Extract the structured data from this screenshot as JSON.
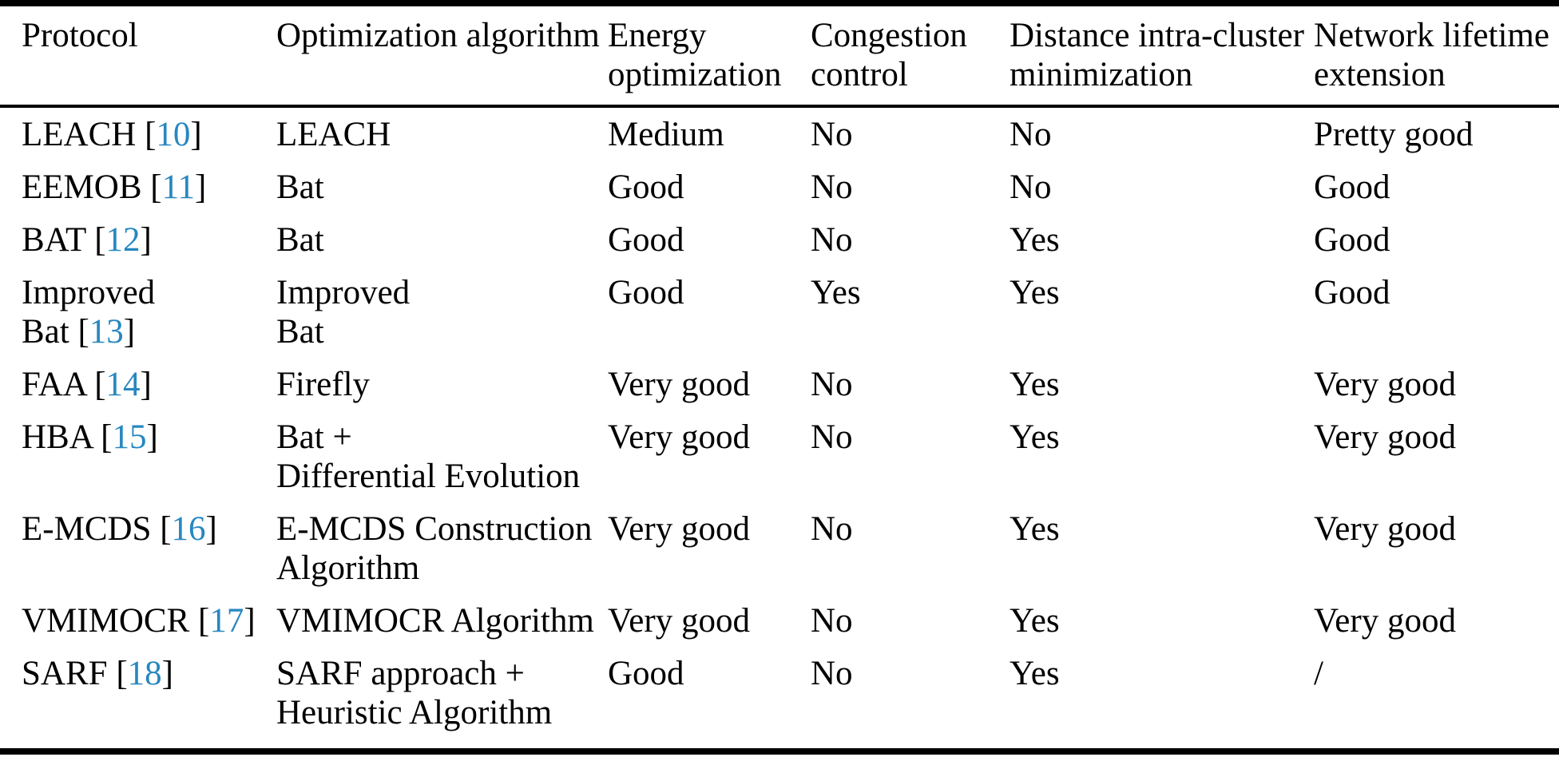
{
  "colors": {
    "citation_link": "#2787c0",
    "text": "#000000",
    "rule": "#000000",
    "background": "#ffffff"
  },
  "citation_format": {
    "prefix": " [",
    "suffix": "]"
  },
  "table": {
    "columns": [
      {
        "key": "protocol",
        "label": "Protocol"
      },
      {
        "key": "algorithm",
        "label": "Optimization algorithm"
      },
      {
        "key": "energy",
        "label": "Energy\noptimization"
      },
      {
        "key": "congestion",
        "label": "Congestion\ncontrol"
      },
      {
        "key": "distance",
        "label": "Distance intra-cluster\nminimization"
      },
      {
        "key": "lifetime",
        "label": "Network lifetime\nextension"
      }
    ],
    "rows": [
      {
        "protocol": "LEACH",
        "ref": "10",
        "algorithm": "LEACH",
        "energy": "Medium",
        "congestion": "No",
        "distance": "No",
        "lifetime": "Pretty good"
      },
      {
        "protocol": "EEMOB",
        "ref": "11",
        "algorithm": "Bat",
        "energy": "Good",
        "congestion": "No",
        "distance": "No",
        "lifetime": "Good"
      },
      {
        "protocol": "BAT",
        "ref": "12",
        "algorithm": "Bat",
        "energy": "Good",
        "congestion": "No",
        "distance": "Yes",
        "lifetime": "Good"
      },
      {
        "protocol": "Improved\nBat",
        "ref": "13",
        "algorithm": "Improved\nBat",
        "energy": "Good",
        "congestion": "Yes",
        "distance": "Yes",
        "lifetime": "Good"
      },
      {
        "protocol": "FAA",
        "ref": "14",
        "algorithm": "Firefly",
        "energy": "Very good",
        "congestion": "No",
        "distance": "Yes",
        "lifetime": "Very good"
      },
      {
        "protocol": "HBA",
        "ref": "15",
        "algorithm": "Bat +\nDifferential Evolution",
        "energy": "Very good",
        "congestion": "No",
        "distance": "Yes",
        "lifetime": "Very good"
      },
      {
        "protocol": "E-MCDS",
        "ref": "16",
        "algorithm": "E-MCDS Construction\nAlgorithm",
        "energy": "Very good",
        "congestion": "No",
        "distance": "Yes",
        "lifetime": "Very good"
      },
      {
        "protocol": "VMIMOCR",
        "ref": "17",
        "algorithm": "VMIMOCR Algorithm",
        "energy": "Very good",
        "congestion": "No",
        "distance": "Yes",
        "lifetime": "Very good"
      },
      {
        "protocol": "SARF",
        "ref": "18",
        "algorithm": "SARF approach +\nHeuristic Algorithm",
        "energy": "Good",
        "congestion": "No",
        "distance": "Yes",
        "lifetime": "/"
      }
    ]
  }
}
